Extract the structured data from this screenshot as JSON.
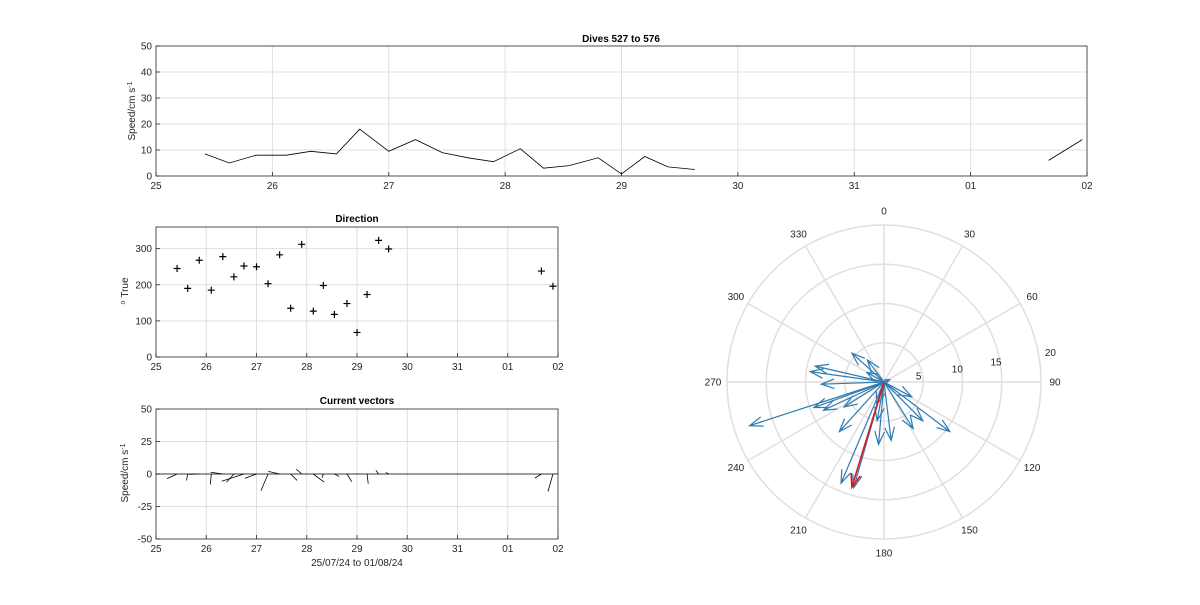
{
  "chart_data": [
    {
      "id": "speed",
      "type": "line",
      "title": "Dives 527 to 576",
      "xlabel": "",
      "ylabel": "Speed/cm s",
      "ylabel_sup": "-1",
      "xlim": [
        25,
        33
      ],
      "ylim": [
        0,
        50
      ],
      "xtick_labels": [
        "25",
        "26",
        "27",
        "28",
        "29",
        "30",
        "31",
        "01",
        "02"
      ],
      "yticks": [
        0,
        10,
        20,
        30,
        40,
        50
      ],
      "grid": true,
      "series": [
        {
          "x": [
            25.42,
            25.63,
            25.86,
            26.12,
            26.33,
            26.55,
            26.75,
            27.0,
            27.23,
            27.46,
            27.68,
            27.9,
            28.13,
            28.33,
            28.55,
            28.8,
            29.0,
            29.2,
            29.4,
            29.63
          ],
          "y": [
            8.5,
            5,
            8,
            8,
            9.5,
            8.5,
            18,
            9.5,
            14,
            9,
            7,
            5.5,
            10.5,
            3,
            4,
            7,
            0.8,
            7.5,
            3.5,
            2.5
          ]
        },
        {
          "x": [
            32.67,
            32.96
          ],
          "y": [
            6,
            14
          ]
        }
      ]
    },
    {
      "id": "direction",
      "type": "scatter",
      "title": "Direction",
      "xlabel": "",
      "ylabel": "True",
      "ylabel_sup": "o",
      "xlim": [
        25,
        33
      ],
      "ylim": [
        0,
        360
      ],
      "xtick_labels": [
        "25",
        "26",
        "27",
        "28",
        "29",
        "30",
        "31",
        "01",
        "02"
      ],
      "yticks": [
        0,
        100,
        200,
        300
      ],
      "grid": true,
      "marker": "+",
      "points": {
        "x": [
          25.42,
          25.63,
          25.86,
          26.1,
          26.33,
          26.55,
          26.75,
          27.0,
          27.23,
          27.46,
          27.68,
          27.9,
          28.13,
          28.33,
          28.55,
          28.8,
          29.0,
          29.2,
          29.43,
          29.63,
          32.67,
          32.9
        ],
        "y": [
          245,
          190,
          268,
          185,
          278,
          222,
          252,
          250,
          203,
          283,
          135,
          312,
          127,
          198,
          118,
          148,
          68,
          173,
          323,
          299,
          238,
          196
        ]
      }
    },
    {
      "id": "vectors",
      "type": "line",
      "title": "Current vectors",
      "xlabel": "25/07/24 to 01/08/24",
      "ylabel": "Speed/cm s",
      "ylabel_sup": "-1",
      "xlim": [
        25,
        33
      ],
      "ylim": [
        -50,
        50
      ],
      "xtick_labels": [
        "25",
        "26",
        "27",
        "28",
        "29",
        "30",
        "31",
        "01",
        "02"
      ],
      "yticks": [
        50,
        25,
        0,
        -25,
        -50
      ],
      "grid": true,
      "sticks": {
        "t": [
          25.42,
          25.63,
          25.86,
          26.1,
          26.33,
          26.55,
          26.75,
          27.0,
          27.23,
          27.46,
          27.68,
          27.9,
          28.13,
          28.33,
          28.55,
          28.8,
          29.0,
          29.2,
          29.43,
          29.63,
          32.67,
          32.9
        ],
        "speed": [
          8.5,
          5,
          8,
          8,
          9.5,
          8.5,
          18,
          9.5,
          14,
          9,
          7,
          5.5,
          10.5,
          3,
          4,
          7,
          0.8,
          7.5,
          3.5,
          2.5,
          6,
          14
        ],
        "direction": [
          245,
          190,
          268,
          185,
          278,
          222,
          252,
          250,
          203,
          283,
          135,
          312,
          127,
          198,
          118,
          148,
          68,
          173,
          323,
          299,
          238,
          196
        ]
      }
    },
    {
      "id": "polar",
      "type": "scatter",
      "title": "",
      "angle_tick_labels": [
        "0",
        "30",
        "60",
        "90",
        "120",
        "150",
        "180",
        "210",
        "240",
        "270",
        "300",
        "330"
      ],
      "radial_ticks": [
        5,
        10,
        15,
        20
      ],
      "rmax": 20,
      "grid": true,
      "colors": {
        "vectors": "#2f7bb2",
        "mean": "#d7191c"
      },
      "arrows": {
        "speed": [
          8.5,
          5,
          8,
          8,
          9.5,
          8.5,
          18,
          9.5,
          14,
          9,
          7,
          5.5,
          10.5,
          3,
          4,
          7,
          0.8,
          7.5,
          3.5,
          2.5,
          6,
          14
        ],
        "direction": [
          245,
          190,
          268,
          185,
          278,
          222,
          252,
          250,
          203,
          283,
          135,
          312,
          127,
          198,
          118,
          148,
          68,
          173,
          323,
          299,
          238,
          196
        ]
      },
      "mean_vector": {
        "speed": 14,
        "direction": 197
      }
    }
  ]
}
